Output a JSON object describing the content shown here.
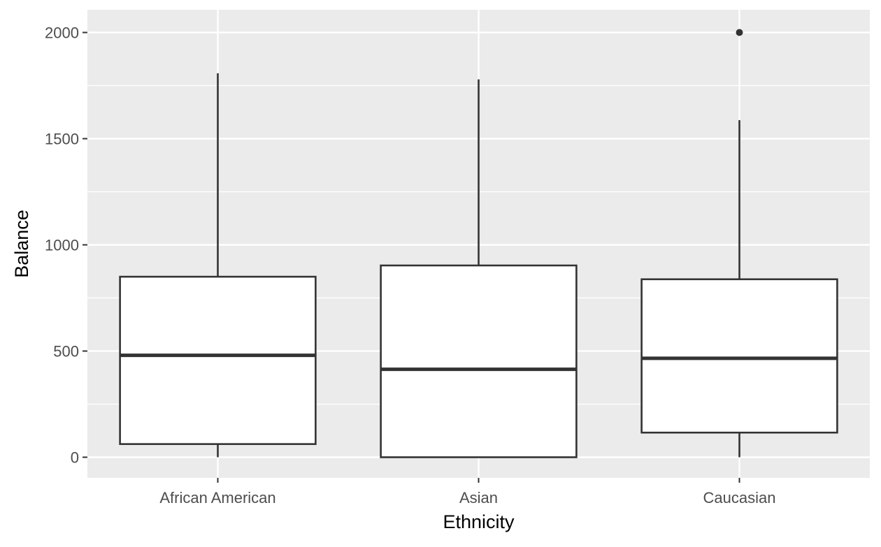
{
  "chart_data": {
    "type": "boxplot",
    "title": "",
    "xlabel": "Ethnicity",
    "ylabel": "Balance",
    "categories": [
      "African American",
      "Asian",
      "Caucasian"
    ],
    "yticks": [
      0,
      500,
      1000,
      1500,
      2000
    ],
    "ylim": [
      -100,
      2110
    ],
    "grid": true,
    "boxes": [
      {
        "category": "African American",
        "whisker_low": 0,
        "q1": 62,
        "median": 480,
        "q3": 850,
        "whisker_high": 1808,
        "outliers": []
      },
      {
        "category": "Asian",
        "whisker_low": 0,
        "q1": 0,
        "median": 414,
        "q3": 903,
        "whisker_high": 1779,
        "outliers": []
      },
      {
        "category": "Caucasian",
        "whisker_low": 0,
        "q1": 116,
        "median": 466,
        "q3": 838,
        "whisker_high": 1587,
        "outliers": [
          2000
        ]
      }
    ],
    "colors": {
      "panel_background": "#ebebeb",
      "grid_line": "#ffffff",
      "box_fill": "#ffffff",
      "box_line": "#333333",
      "tick_text": "#4d4d4d",
      "axis_title": "#000000"
    }
  }
}
